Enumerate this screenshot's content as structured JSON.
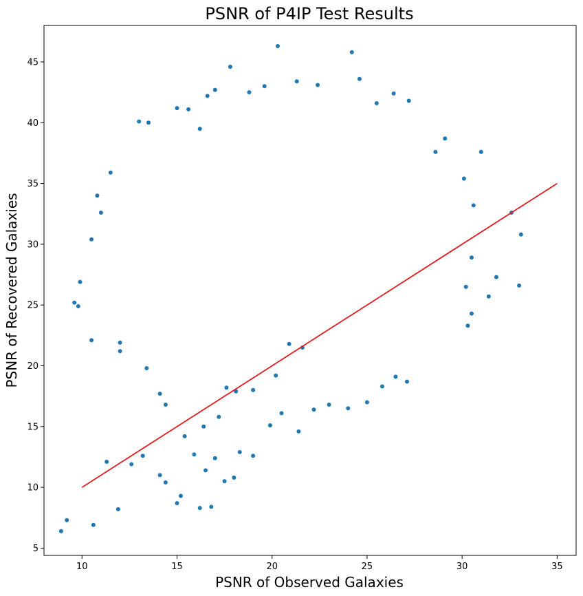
{
  "chart_data": {
    "type": "scatter",
    "title": "PSNR of P4IP Test Results",
    "xlabel": "PSNR of Observed Galaxies",
    "ylabel": "PSNR of Recovered Galaxies",
    "xlim": [
      8.0,
      36.0
    ],
    "ylim": [
      4.4,
      48.0
    ],
    "xticks": [
      "10",
      "15",
      "20",
      "25",
      "30",
      "35"
    ],
    "yticks": [
      "5",
      "10",
      "15",
      "20",
      "25",
      "30",
      "35",
      "40",
      "45"
    ],
    "grid": false,
    "legend": "none",
    "point_color": "#1f77b4",
    "line_color": "#e41a1c",
    "reference_line": {
      "x": [
        10,
        35
      ],
      "y": [
        10,
        35
      ]
    },
    "series": [
      {
        "values_note": "",
        "points": [
          [
            8.9,
            6.4
          ],
          [
            9.2,
            7.3
          ],
          [
            10.6,
            6.9
          ],
          [
            11.9,
            8.2
          ],
          [
            11.3,
            12.1
          ],
          [
            12.6,
            11.9
          ],
          [
            13.2,
            12.6
          ],
          [
            9.6,
            25.2
          ],
          [
            9.8,
            24.9
          ],
          [
            9.9,
            26.9
          ],
          [
            10.5,
            22.1
          ],
          [
            10.5,
            30.4
          ],
          [
            10.8,
            34.0
          ],
          [
            11.0,
            32.6
          ],
          [
            11.5,
            35.9
          ],
          [
            12.0,
            21.2
          ],
          [
            12.0,
            21.9
          ],
          [
            13.0,
            40.1
          ],
          [
            13.5,
            40.0
          ],
          [
            13.4,
            19.8
          ],
          [
            14.1,
            17.7
          ],
          [
            14.4,
            16.8
          ],
          [
            14.1,
            11.0
          ],
          [
            14.4,
            10.4
          ],
          [
            15.0,
            8.7
          ],
          [
            15.2,
            9.3
          ],
          [
            16.2,
            8.3
          ],
          [
            16.8,
            8.4
          ],
          [
            15.0,
            41.2
          ],
          [
            15.6,
            41.1
          ],
          [
            16.2,
            39.5
          ],
          [
            16.6,
            42.2
          ],
          [
            17.0,
            42.7
          ],
          [
            17.8,
            44.6
          ],
          [
            18.8,
            42.5
          ],
          [
            19.6,
            43.0
          ],
          [
            20.3,
            46.3
          ],
          [
            21.3,
            43.4
          ],
          [
            22.4,
            43.1
          ],
          [
            24.2,
            45.8
          ],
          [
            24.6,
            43.6
          ],
          [
            25.5,
            41.6
          ],
          [
            26.4,
            42.4
          ],
          [
            27.2,
            41.8
          ],
          [
            28.6,
            37.6
          ],
          [
            29.1,
            38.7
          ],
          [
            30.1,
            35.4
          ],
          [
            30.6,
            33.2
          ],
          [
            31.0,
            37.6
          ],
          [
            31.8,
            27.3
          ],
          [
            31.4,
            25.7
          ],
          [
            32.6,
            32.6
          ],
          [
            33.0,
            26.6
          ],
          [
            33.1,
            30.8
          ],
          [
            30.3,
            23.3
          ],
          [
            30.5,
            24.3
          ],
          [
            30.2,
            26.5
          ],
          [
            30.5,
            28.9
          ],
          [
            15.4,
            14.2
          ],
          [
            15.9,
            12.7
          ],
          [
            16.5,
            11.4
          ],
          [
            17.0,
            12.4
          ],
          [
            17.5,
            10.5
          ],
          [
            18.0,
            10.8
          ],
          [
            18.3,
            12.9
          ],
          [
            19.0,
            12.6
          ],
          [
            19.9,
            15.1
          ],
          [
            20.5,
            16.1
          ],
          [
            21.4,
            14.6
          ],
          [
            22.2,
            16.4
          ],
          [
            23.0,
            16.8
          ],
          [
            24.0,
            16.5
          ],
          [
            25.0,
            17.0
          ],
          [
            25.8,
            18.3
          ],
          [
            26.5,
            19.1
          ],
          [
            27.1,
            18.7
          ],
          [
            19.0,
            18.0
          ],
          [
            20.2,
            19.2
          ],
          [
            18.1,
            17.9
          ],
          [
            17.6,
            18.2
          ],
          [
            20.9,
            21.8
          ],
          [
            21.6,
            21.5
          ],
          [
            16.4,
            15.0
          ],
          [
            17.2,
            15.8
          ]
        ]
      }
    ]
  }
}
